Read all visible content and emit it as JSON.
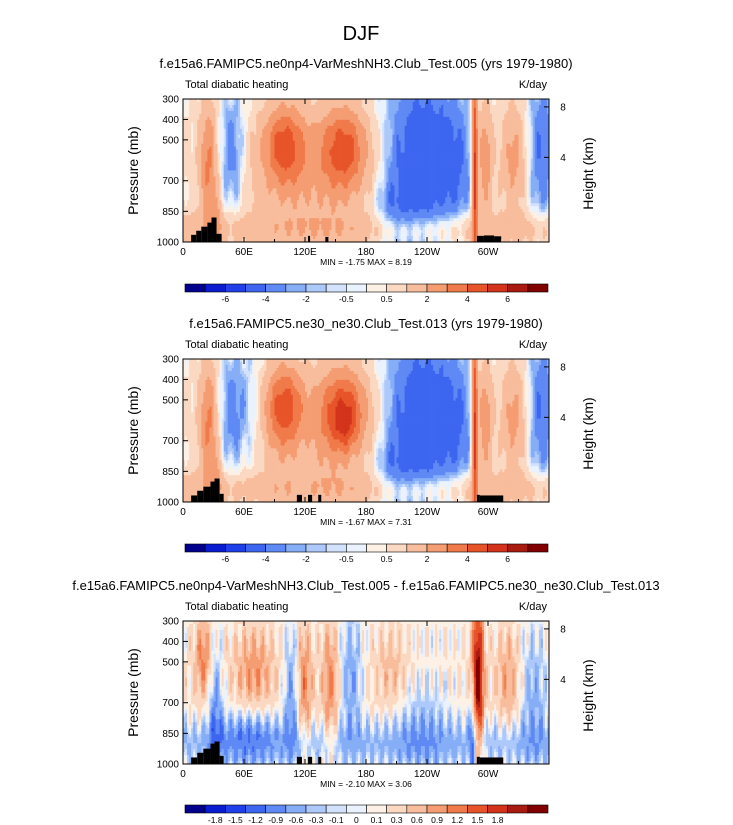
{
  "figure_title": "DJF",
  "colors": {
    "continent_mask": "#000000",
    "blue_dark": "#00008c",
    "red_dark": "#800000",
    "palette_abs": [
      "#00008c",
      "#0a1ccf",
      "#1f3fe8",
      "#3d66f0",
      "#5f89f4",
      "#86aef7",
      "#adc9fa",
      "#d2e2fd",
      "#eaf2fe",
      "#fdf0e4",
      "#fbd8c2",
      "#f8bd9c",
      "#f59d72",
      "#f07a4a",
      "#e8542a",
      "#d3331b",
      "#a91b10",
      "#800000"
    ],
    "palette_diff": [
      "#00008c",
      "#0a1ccf",
      "#1f3fe8",
      "#3d66f0",
      "#5f89f4",
      "#86aef7",
      "#adc9fa",
      "#d2e2fd",
      "#eaf2fe",
      "#fdf0e4",
      "#fbd8c2",
      "#f8bd9c",
      "#f59d72",
      "#f07a4a",
      "#e8542a",
      "#d3331b",
      "#a91b10",
      "#800000"
    ]
  },
  "chart_data": [
    {
      "type": "heatmap",
      "title": "f.e15a6.FAMIPC5.ne0np4-VarMeshNH3.Club_Test.005 (yrs 1979-1980)",
      "left_label": "Total diabatic heating",
      "right_label": "K/day",
      "xlabel": "",
      "ylabel": "Pressure (mb)",
      "ylabel_right": "Height (km)",
      "x_ticks": [
        "0",
        "60E",
        "120E",
        "180",
        "120W",
        "60W"
      ],
      "x_tick_values": [
        0,
        60,
        120,
        180,
        240,
        300
      ],
      "xlim": [
        0,
        360
      ],
      "y_ticks": [
        "300",
        "400",
        "500",
        "700",
        "850",
        "1000"
      ],
      "y_tick_values": [
        300,
        400,
        500,
        700,
        850,
        1000
      ],
      "ylim": [
        1000,
        300
      ],
      "height_ticks": [
        "8",
        "4"
      ],
      "height_tick_values": [
        8,
        4
      ],
      "stats": "MIN =  -1.75  MAX =  8.19",
      "colorbar_labels": [
        "-6",
        "-4",
        "-2",
        "-0.5",
        "0.5",
        "2",
        "4",
        "6"
      ],
      "variant": "A"
    },
    {
      "type": "heatmap",
      "title": "f.e15a6.FAMIPC5.ne30_ne30.Club_Test.013 (yrs 1979-1980)",
      "left_label": "Total diabatic heating",
      "right_label": "K/day",
      "xlabel": "",
      "ylabel": "Pressure (mb)",
      "ylabel_right": "Height (km)",
      "x_ticks": [
        "0",
        "60E",
        "120E",
        "180",
        "120W",
        "60W"
      ],
      "x_tick_values": [
        0,
        60,
        120,
        180,
        240,
        300
      ],
      "xlim": [
        0,
        360
      ],
      "y_ticks": [
        "300",
        "400",
        "500",
        "700",
        "850",
        "1000"
      ],
      "y_tick_values": [
        300,
        400,
        500,
        700,
        850,
        1000
      ],
      "ylim": [
        1000,
        300
      ],
      "height_ticks": [
        "8",
        "4"
      ],
      "height_tick_values": [
        8,
        4
      ],
      "stats": "MIN =  -1.67  MAX =  7.31",
      "colorbar_labels": [
        "-6",
        "-4",
        "-2",
        "-0.5",
        "0.5",
        "2",
        "4",
        "6"
      ],
      "variant": "B"
    },
    {
      "type": "heatmap",
      "title": "f.e15a6.FAMIPC5.ne0np4-VarMeshNH3.Club_Test.005 - f.e15a6.FAMIPC5.ne30_ne30.Club_Test.013",
      "left_label": "Total diabatic heating",
      "right_label": "K/day",
      "xlabel": "",
      "ylabel": "Pressure (mb)",
      "ylabel_right": "Height (km)",
      "x_ticks": [
        "0",
        "60E",
        "120E",
        "180",
        "120W",
        "60W"
      ],
      "x_tick_values": [
        0,
        60,
        120,
        180,
        240,
        300
      ],
      "xlim": [
        0,
        360
      ],
      "y_ticks": [
        "300",
        "400",
        "500",
        "700",
        "850",
        "1000"
      ],
      "y_tick_values": [
        300,
        400,
        500,
        700,
        850,
        1000
      ],
      "ylim": [
        1000,
        300
      ],
      "height_ticks": [
        "8",
        "4"
      ],
      "height_tick_values": [
        8,
        4
      ],
      "stats": "MIN =  -2.10  MAX =  3.06",
      "colorbar_labels": [
        "-1.8",
        "-1.5",
        "-1.2",
        "-0.9",
        "-0.6",
        "-0.3",
        "-0.1",
        "0",
        "0.1",
        "0.3",
        "0.6",
        "0.9",
        "1.2",
        "1.5",
        "1.8"
      ],
      "variant": "D"
    }
  ]
}
